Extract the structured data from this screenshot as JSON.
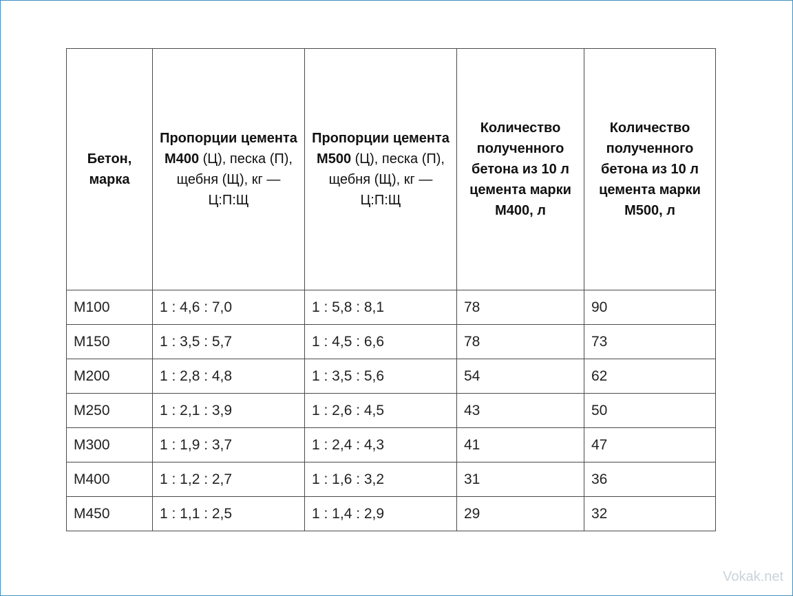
{
  "table": {
    "headers": [
      {
        "bold": "Бетон, марка",
        "normal": ""
      },
      {
        "bold": "Пропорции цемента М400",
        "normal": "(Ц), песка (П), щебня (Щ), кг — Ц:П:Щ"
      },
      {
        "bold": "Пропорции цемента М500",
        "normal": "(Ц), песка (П), щебня (Щ), кг — Ц:П:Щ"
      },
      {
        "bold": "Количество полученного бетона из 10 л цемента марки М400, л",
        "normal": ""
      },
      {
        "bold": "Количество полученного бетона из 10 л цемента марки М500, л",
        "normal": ""
      }
    ],
    "rows": [
      [
        "М100",
        "1 : 4,6 : 7,0",
        "1 : 5,8 : 8,1",
        "78",
        "90"
      ],
      [
        "М150",
        "1 : 3,5 : 5,7",
        "1 : 4,5 : 6,6",
        "78",
        "73"
      ],
      [
        "М200",
        "1 : 2,8 : 4,8",
        "1 : 3,5 : 5,6",
        "54",
        "62"
      ],
      [
        "М250",
        "1 : 2,1 : 3,9",
        "1 : 2,6 : 4,5",
        "43",
        "50"
      ],
      [
        "М300",
        "1 : 1,9 : 3,7",
        "1 : 2,4 : 4,3",
        "41",
        "47"
      ],
      [
        "М400",
        "1 : 1,2 : 2,7",
        "1 : 1,6 : 3,2",
        "31",
        "36"
      ],
      [
        "М450",
        "1 : 1,1 : 2,5",
        "1 : 1,4 : 2,9",
        "29",
        "32"
      ]
    ]
  },
  "watermark": "Vokak.net"
}
